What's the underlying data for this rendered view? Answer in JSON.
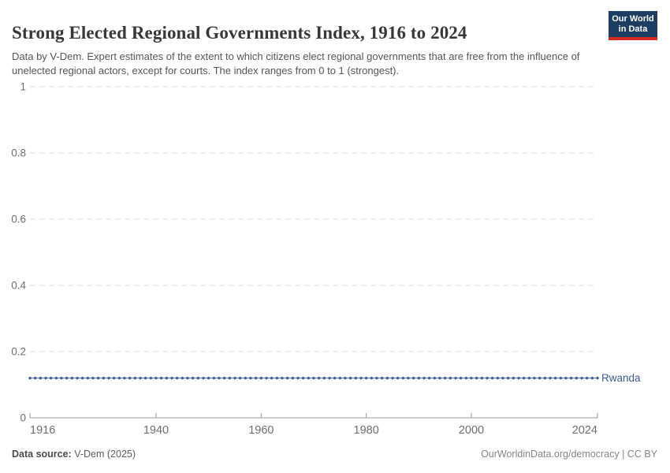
{
  "header": {
    "title": "Strong Elected Regional Governments Index, 1916 to 2024",
    "subtitle": "Data by V-Dem. Expert estimates of the extent to which citizens elect regional governments that are free from the influence of unelected regional actors, except for courts. The index ranges from 0 to 1 (strongest).",
    "logo": {
      "line1": "Our World",
      "line2": "in Data",
      "bg_color": "#1d3d63",
      "accent_color": "#d42b21"
    }
  },
  "chart_data": {
    "type": "line",
    "title": "Strong Elected Regional Governments Index, 1916 to 2024",
    "xlabel": "",
    "ylabel": "",
    "xlim": [
      1916,
      2024
    ],
    "ylim": [
      0,
      1
    ],
    "x_ticks": [
      1916,
      1940,
      1960,
      1980,
      2000,
      2024
    ],
    "y_ticks": [
      0,
      0.2,
      0.4,
      0.6,
      0.8,
      1
    ],
    "grid": "horizontal dashed gridlines on",
    "legend_position": "end-of-line label",
    "marker": "dot at every yearly data point",
    "series": [
      {
        "name": "Rwanda",
        "color": "#3d5c99",
        "start_year": 1916,
        "end_year": 2024,
        "step_years": 1,
        "constant_value": 0.12,
        "note": "flat line: value 0.12 for every year 1916-2024"
      }
    ],
    "colors": {
      "gridline": "#dedede",
      "axis": "#999999",
      "tick_label": "#6e6e6e"
    }
  },
  "footer": {
    "source_label": "Data source:",
    "source_value": " V-Dem (2025)",
    "credit": "OurWorldinData.org/democracy | CC BY"
  }
}
